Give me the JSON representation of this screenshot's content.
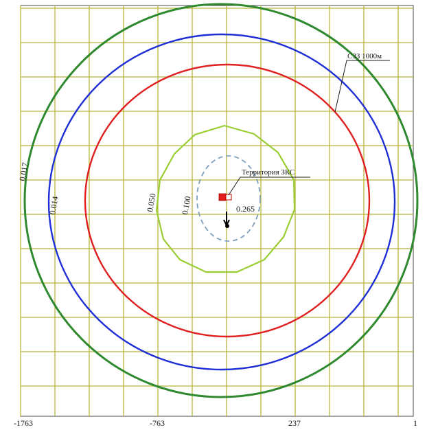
{
  "map": {
    "grid_color": "#b8b43a",
    "background": "#ffffff"
  },
  "axis": {
    "x_tick_labels": [
      "-1763",
      "-763",
      "237",
      "1"
    ],
    "y_tick_labels": []
  },
  "isolines": [
    {
      "label": "0.017",
      "color": "#2f8a2f"
    },
    {
      "label": "0.014",
      "color": "#1f2fd6"
    },
    {
      "label": "0.050",
      "color": "#9acd32"
    },
    {
      "label": "0.100",
      "color": "#7f9fbf"
    },
    {
      "label": "0.265",
      "color": "#000000"
    }
  ],
  "red_contour": {
    "color": "#e02020"
  },
  "annotations": {
    "sanitary_zone": "СЗЗ 1000м",
    "territory": "Территория ЗКС"
  },
  "marker": {
    "color": "#e02020"
  }
}
